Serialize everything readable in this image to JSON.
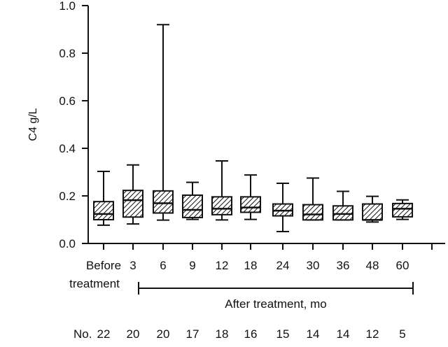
{
  "chart_data": {
    "type": "box",
    "ylabel": "C4 g/L",
    "ylim": [
      0,
      1.0
    ],
    "yticks": [
      "0.0",
      "0.2",
      "0.4",
      "0.6",
      "0.8",
      "1.0"
    ],
    "categories": [
      "Before",
      "3",
      "6",
      "9",
      "12",
      "18",
      "24",
      "30",
      "36",
      "48",
      "60"
    ],
    "category_sublabel": "treatment",
    "group_label": "After treatment, mo",
    "n_label": "No.",
    "n": [
      "22",
      "20",
      "20",
      "17",
      "18",
      "16",
      "15",
      "14",
      "14",
      "12",
      "5"
    ],
    "boxes": [
      {
        "min": 0.077,
        "q1": 0.1,
        "median": 0.124,
        "q3": 0.176,
        "max": 0.303
      },
      {
        "min": 0.082,
        "q1": 0.111,
        "median": 0.182,
        "q3": 0.223,
        "max": 0.33
      },
      {
        "min": 0.098,
        "q1": 0.128,
        "median": 0.169,
        "q3": 0.221,
        "max": 0.92
      },
      {
        "min": 0.101,
        "q1": 0.109,
        "median": 0.141,
        "q3": 0.203,
        "max": 0.257
      },
      {
        "min": 0.099,
        "q1": 0.121,
        "median": 0.146,
        "q3": 0.196,
        "max": 0.347
      },
      {
        "min": 0.101,
        "q1": 0.131,
        "median": 0.151,
        "q3": 0.196,
        "max": 0.288
      },
      {
        "min": 0.05,
        "q1": 0.116,
        "median": 0.138,
        "q3": 0.166,
        "max": 0.253
      },
      {
        "min": 0.099,
        "q1": 0.099,
        "median": 0.122,
        "q3": 0.163,
        "max": 0.275
      },
      {
        "min": 0.099,
        "q1": 0.099,
        "median": 0.124,
        "q3": 0.158,
        "max": 0.219
      },
      {
        "min": 0.09,
        "q1": 0.099,
        "median": 0.099,
        "q3": 0.166,
        "max": 0.198
      },
      {
        "min": 0.101,
        "q1": 0.112,
        "median": 0.146,
        "q3": 0.168,
        "max": 0.183
      }
    ],
    "box_fill": "diagonal-hatch",
    "color": "#111111",
    "grid": false
  }
}
